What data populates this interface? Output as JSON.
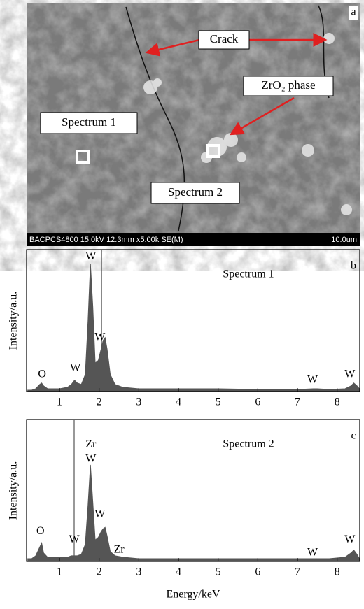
{
  "sem_panel": {
    "panel_label": "a",
    "info_bar": "BACPCS4800 15.0kV 12.3mm x5.00k SE(M)",
    "scale_bar": "10.0um",
    "labels": {
      "crack": "Crack",
      "zro2": "ZrO₂ phase",
      "spectrum1": "Spectrum 1",
      "spectrum2": "Spectrum 2"
    }
  },
  "chart_data": [
    {
      "type": "area",
      "panel_label": "b",
      "title": "Spectrum 1",
      "y_label": "Intensity/a.u.",
      "color": "#555555",
      "xlim": [
        0.17,
        8.57
      ],
      "ylim": [
        0,
        100
      ],
      "xticks": [
        1,
        2,
        3,
        4,
        5,
        6,
        7,
        8
      ],
      "x": [
        0.2,
        0.3,
        0.4,
        0.5,
        0.55,
        0.6,
        0.7,
        0.8,
        1.0,
        1.2,
        1.3,
        1.38,
        1.45,
        1.55,
        1.65,
        1.72,
        1.78,
        1.84,
        1.9,
        1.98,
        2.05,
        2.1,
        2.15,
        2.2,
        2.28,
        2.4,
        2.6,
        3.0,
        3.5,
        4.0,
        5.0,
        6.0,
        7.0,
        7.4,
        7.5,
        7.8,
        8.2,
        8.35,
        8.42,
        8.5,
        8.56
      ],
      "values": [
        1,
        1,
        2,
        5,
        6,
        4,
        2,
        2,
        2,
        3,
        5,
        8,
        6,
        5,
        12,
        50,
        90,
        60,
        20,
        22,
        30,
        36,
        38,
        30,
        12,
        5,
        3,
        2,
        2,
        2,
        2,
        1.5,
        1.5,
        2,
        2,
        1.5,
        2,
        4,
        6,
        4,
        2
      ],
      "reference_lines": [
        2.06
      ],
      "peak_labels": [
        {
          "text": "O",
          "x": 0.56,
          "y": 12
        },
        {
          "text": "W",
          "x": 1.4,
          "y": 16
        },
        {
          "text": "W",
          "x": 1.79,
          "y": 95
        },
        {
          "text": "W",
          "x": 2.02,
          "y": 38
        },
        {
          "text": "W",
          "x": 7.38,
          "y": 8
        },
        {
          "text": "W",
          "x": 8.32,
          "y": 12
        }
      ]
    },
    {
      "type": "area",
      "panel_label": "c",
      "title": "Spectrum 2",
      "y_label": "Intensity/a.u.",
      "x_label": "Energy/keV",
      "color": "#555555",
      "xlim": [
        0.17,
        8.57
      ],
      "ylim": [
        0,
        100
      ],
      "xticks": [
        1,
        2,
        3,
        4,
        5,
        6,
        7,
        8
      ],
      "x": [
        0.2,
        0.3,
        0.4,
        0.5,
        0.55,
        0.6,
        0.7,
        0.8,
        1.0,
        1.2,
        1.3,
        1.38,
        1.45,
        1.55,
        1.65,
        1.72,
        1.78,
        1.84,
        1.9,
        1.98,
        2.05,
        2.1,
        2.15,
        2.2,
        2.28,
        2.4,
        2.6,
        3.0,
        3.5,
        4.0,
        5.0,
        6.0,
        7.0,
        7.4,
        7.5,
        7.8,
        8.2,
        8.35,
        8.42,
        8.5,
        8.56
      ],
      "values": [
        2,
        2,
        4,
        10,
        13,
        6,
        3,
        3,
        3,
        3,
        4,
        4,
        4,
        5,
        12,
        40,
        68,
        42,
        15,
        17,
        21,
        23,
        24,
        18,
        7,
        4,
        3,
        2,
        2,
        2,
        2,
        2,
        2,
        2,
        2,
        2,
        3,
        6,
        8,
        5,
        2
      ],
      "reference_lines": [
        1.37
      ],
      "peak_labels": [
        {
          "text": "O",
          "x": 0.52,
          "y": 21
        },
        {
          "text": "W",
          "x": 1.37,
          "y": 15
        },
        {
          "text": "Zr",
          "x": 1.79,
          "y": 82
        },
        {
          "text": "W",
          "x": 1.79,
          "y": 72
        },
        {
          "text": "W",
          "x": 2.02,
          "y": 33
        },
        {
          "text": "Zr",
          "x": 2.5,
          "y": 8
        },
        {
          "text": "W",
          "x": 7.38,
          "y": 6
        },
        {
          "text": "W",
          "x": 8.32,
          "y": 15
        }
      ]
    }
  ]
}
